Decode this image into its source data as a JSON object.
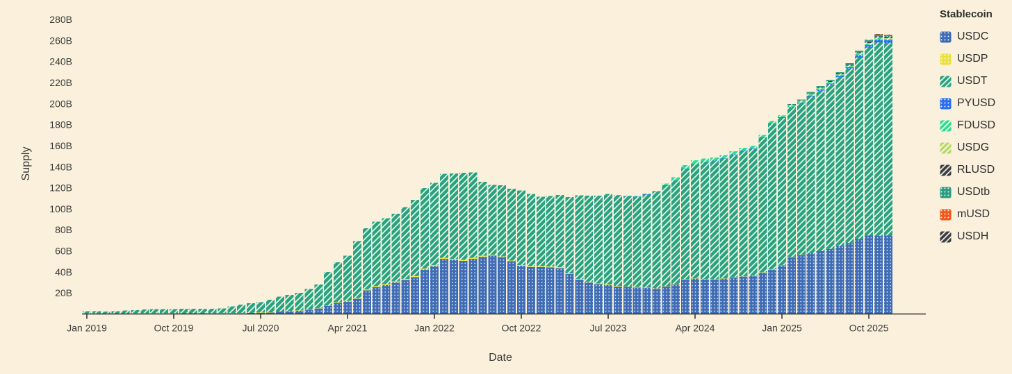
{
  "page": {
    "background": "#faf0dc",
    "text_color": "#3b3b3b",
    "axis_color": "#2f2f2f"
  },
  "chart_data": {
    "type": "bar",
    "stacked": true,
    "xlabel": "Date",
    "ylabel": "Supply",
    "legend_title": "Stablecoin",
    "legend_position": "right",
    "grid": false,
    "unit": "B (billions)",
    "ylim": [
      0,
      290
    ],
    "y_ticks": [
      {
        "value": 20,
        "label": "20B"
      },
      {
        "value": 40,
        "label": "40B"
      },
      {
        "value": 60,
        "label": "60B"
      },
      {
        "value": 80,
        "label": "80B"
      },
      {
        "value": 100,
        "label": "100B"
      },
      {
        "value": 120,
        "label": "120B"
      },
      {
        "value": 140,
        "label": "140B"
      },
      {
        "value": 160,
        "label": "160B"
      },
      {
        "value": 180,
        "label": "180B"
      },
      {
        "value": 200,
        "label": "200B"
      },
      {
        "value": 220,
        "label": "220B"
      },
      {
        "value": 240,
        "label": "240B"
      },
      {
        "value": 260,
        "label": "260B"
      },
      {
        "value": 280,
        "label": "280B"
      }
    ],
    "x_ticks": [
      {
        "index": 0,
        "label": "Jan 2019"
      },
      {
        "index": 9,
        "label": "Oct 2019"
      },
      {
        "index": 18,
        "label": "Jul 2020"
      },
      {
        "index": 27,
        "label": "Apr 2021"
      },
      {
        "index": 36,
        "label": "Jan 2022"
      },
      {
        "index": 45,
        "label": "Oct 2022"
      },
      {
        "index": 54,
        "label": "Jul 2023"
      },
      {
        "index": 63,
        "label": "Apr 2024"
      },
      {
        "index": 72,
        "label": "Jan 2025"
      },
      {
        "index": 81,
        "label": "Oct 2025"
      }
    ],
    "x_start": "2019-01",
    "x_end": "2025-12",
    "x_interval": "month",
    "series": [
      {
        "key": "usdc",
        "name": "USDC",
        "color": "#3e6cb5",
        "pattern": "dots",
        "values": [
          0.4,
          0.35,
          0.3,
          0.3,
          0.35,
          0.35,
          0.4,
          0.45,
          0.45,
          0.45,
          0.5,
          0.5,
          0.5,
          0.45,
          0.65,
          0.7,
          0.75,
          0.9,
          1.1,
          1.4,
          2.2,
          2.7,
          2.9,
          3.9,
          5.2,
          7.5,
          10.5,
          11.8,
          14.5,
          22.5,
          25.5,
          27.5,
          30.0,
          32.3,
          35.0,
          42.2,
          45.6,
          52.5,
          51.5,
          50.5,
          52.5,
          54.5,
          55.5,
          54.0,
          50.0,
          45.7,
          44.6,
          44.6,
          44.2,
          43.6,
          38.0,
          32.5,
          30.0,
          28.5,
          27.5,
          26.1,
          25.6,
          25.1,
          24.6,
          24.4,
          26.0,
          28.0,
          32.5,
          33.5,
          33.1,
          32.6,
          33.6,
          34.6,
          35.6,
          36.2,
          39.2,
          42.3,
          46.2,
          54.2,
          56.2,
          57.6,
          59.6,
          61.6,
          64.2,
          67.6,
          71.2,
          74.6,
          74.2,
          74.6
        ]
      },
      {
        "key": "usdp",
        "name": "USDP",
        "color": "#e9e23e",
        "pattern": "dots",
        "values": [
          0.15,
          0.15,
          0.15,
          0.15,
          0.15,
          0.15,
          0.2,
          0.2,
          0.2,
          0.2,
          0.25,
          0.25,
          0.25,
          0.25,
          0.25,
          0.25,
          0.25,
          0.25,
          0.25,
          0.25,
          0.25,
          0.25,
          0.3,
          0.3,
          0.4,
          0.5,
          0.6,
          0.7,
          0.8,
          0.85,
          0.9,
          0.95,
          0.95,
          0.95,
          0.95,
          0.95,
          0.95,
          0.95,
          0.95,
          0.95,
          0.95,
          0.9,
          0.9,
          0.9,
          0.9,
          0.9,
          0.85,
          0.85,
          0.85,
          0.8,
          0.75,
          0.7,
          0.65,
          0.6,
          0.55,
          0.5,
          0.5,
          0.48,
          0.45,
          0.45,
          0.45,
          0.42,
          0.4,
          0.4,
          0.38,
          0.36,
          0.35,
          0.33,
          0.3,
          0.28,
          0.25,
          0.22,
          0.2,
          0.18,
          0.15,
          0.13,
          0.12,
          0.11,
          0.1,
          0.1,
          0.1,
          0.1,
          0.1,
          0.1
        ]
      },
      {
        "key": "usdt",
        "name": "USDT",
        "color": "#2aa27c",
        "pattern": "hatch",
        "values": [
          2.0,
          2.0,
          2.0,
          2.2,
          2.9,
          3.1,
          3.6,
          4.0,
          4.05,
          4.1,
          4.2,
          4.1,
          4.2,
          4.3,
          4.3,
          6.4,
          8.0,
          9.2,
          10.0,
          12.0,
          13.9,
          15.3,
          16.8,
          19.6,
          22.4,
          32.0,
          38.0,
          43.0,
          54.0,
          58.0,
          61.5,
          62.5,
          64.5,
          68.5,
          72.5,
          76.5,
          78.3,
          79.8,
          81.2,
          82.8,
          81.2,
          70.2,
          66.2,
          67.6,
          68.3,
          71.0,
          68.8,
          66.2,
          67.0,
          68.8,
          72.5,
          79.5,
          82.0,
          83.3,
          86.0,
          86.3,
          85.8,
          86.0,
          88.5,
          91.0,
          95.5,
          98.5,
          105.0,
          108.5,
          110.8,
          112.5,
          113.8,
          116.2,
          118.8,
          120.3,
          128.0,
          138.5,
          140.0,
          142.0,
          144.0,
          149.0,
          152.5,
          156.5,
          161.0,
          165.5,
          172.5,
          178.5,
          184.0,
          183.0
        ]
      },
      {
        "key": "pyusd",
        "name": "PYUSD",
        "color": "#2b6ff0",
        "pattern": "dots",
        "values": [
          0,
          0,
          0,
          0,
          0,
          0,
          0,
          0,
          0,
          0,
          0,
          0,
          0,
          0,
          0,
          0,
          0,
          0,
          0,
          0,
          0,
          0,
          0,
          0,
          0,
          0,
          0,
          0,
          0,
          0,
          0,
          0,
          0,
          0,
          0,
          0,
          0,
          0,
          0,
          0,
          0,
          0,
          0,
          0,
          0,
          0,
          0,
          0,
          0,
          0,
          0,
          0,
          0,
          0,
          0,
          0.05,
          0.1,
          0.15,
          0.2,
          0.2,
          0.3,
          0.3,
          0.3,
          0.2,
          0.3,
          0.4,
          0.5,
          0.7,
          0.7,
          0.6,
          0.55,
          0.5,
          0.5,
          0.6,
          0.7,
          0.8,
          0.9,
          0.95,
          1.0,
          1.2,
          2.4,
          2.6,
          2.7,
          2.6
        ]
      },
      {
        "key": "fdusd",
        "name": "FDUSD",
        "color": "#30dc8c",
        "pattern": "hatch",
        "values": [
          0,
          0,
          0,
          0,
          0,
          0,
          0,
          0,
          0,
          0,
          0,
          0,
          0,
          0,
          0,
          0,
          0,
          0,
          0,
          0,
          0,
          0,
          0,
          0,
          0,
          0,
          0,
          0,
          0,
          0,
          0,
          0,
          0,
          0,
          0,
          0,
          0,
          0,
          0,
          0,
          0,
          0,
          0,
          0,
          0,
          0,
          0,
          0,
          0,
          0,
          0,
          0,
          0,
          0,
          0,
          0.3,
          0.45,
          0.55,
          0.75,
          1.1,
          1.9,
          2.6,
          3.3,
          3.5,
          3.3,
          3.0,
          2.9,
          2.9,
          2.7,
          2.5,
          2.3,
          2.0,
          1.9,
          1.8,
          1.6,
          1.45,
          1.35,
          1.3,
          1.4,
          1.3,
          1.2,
          1.1,
          1.1,
          1.05
        ]
      },
      {
        "key": "usdg",
        "name": "USDG",
        "color": "#b9d865",
        "pattern": "hatch",
        "values": [
          0,
          0,
          0,
          0,
          0,
          0,
          0,
          0,
          0,
          0,
          0,
          0,
          0,
          0,
          0,
          0,
          0,
          0,
          0,
          0,
          0,
          0,
          0,
          0,
          0,
          0,
          0,
          0,
          0,
          0,
          0,
          0,
          0,
          0,
          0,
          0,
          0,
          0,
          0,
          0,
          0,
          0,
          0,
          0,
          0,
          0,
          0,
          0,
          0,
          0,
          0,
          0,
          0,
          0,
          0,
          0,
          0,
          0,
          0,
          0,
          0,
          0,
          0,
          0,
          0,
          0,
          0,
          0,
          0,
          0,
          0.05,
          0.1,
          0.15,
          0.2,
          0.25,
          0.3,
          0.3,
          0.35,
          0.4,
          0.5,
          0.65,
          0.8,
          0.9,
          0.9
        ]
      },
      {
        "key": "rlusd",
        "name": "RLUSD",
        "color": "#3d3d3d",
        "pattern": "hatch",
        "values": [
          0,
          0,
          0,
          0,
          0,
          0,
          0,
          0,
          0,
          0,
          0,
          0,
          0,
          0,
          0,
          0,
          0,
          0,
          0,
          0,
          0,
          0,
          0,
          0,
          0,
          0,
          0,
          0,
          0,
          0,
          0,
          0,
          0,
          0,
          0,
          0,
          0,
          0,
          0,
          0,
          0,
          0,
          0,
          0,
          0,
          0,
          0,
          0,
          0,
          0,
          0,
          0,
          0,
          0,
          0,
          0,
          0,
          0,
          0,
          0,
          0,
          0,
          0,
          0,
          0,
          0,
          0,
          0,
          0,
          0,
          0,
          0.05,
          0.1,
          0.15,
          0.25,
          0.3,
          0.35,
          0.45,
          0.5,
          0.65,
          0.7,
          0.8,
          0.9,
          0.9
        ]
      },
      {
        "key": "usdtb",
        "name": "USDtb",
        "color": "#2d9c83",
        "pattern": "dots",
        "values": [
          0,
          0,
          0,
          0,
          0,
          0,
          0,
          0,
          0,
          0,
          0,
          0,
          0,
          0,
          0,
          0,
          0,
          0,
          0,
          0,
          0,
          0,
          0,
          0,
          0,
          0,
          0,
          0,
          0,
          0,
          0,
          0,
          0,
          0,
          0,
          0,
          0,
          0,
          0,
          0,
          0,
          0,
          0,
          0,
          0,
          0,
          0,
          0,
          0,
          0,
          0,
          0,
          0,
          0,
          0,
          0,
          0,
          0,
          0,
          0,
          0,
          0,
          0,
          0,
          0,
          0,
          0,
          0,
          0,
          0,
          0,
          0.05,
          0.1,
          0.6,
          0.85,
          1.4,
          1.45,
          1.45,
          1.45,
          1.5,
          1.6,
          1.7,
          1.7,
          1.7
        ]
      },
      {
        "key": "musd",
        "name": "mUSD",
        "color": "#f2581d",
        "pattern": "dots",
        "values": [
          0,
          0,
          0,
          0,
          0,
          0,
          0,
          0,
          0,
          0,
          0,
          0,
          0,
          0,
          0,
          0,
          0,
          0,
          0,
          0,
          0,
          0,
          0,
          0,
          0,
          0,
          0,
          0,
          0,
          0,
          0,
          0,
          0,
          0,
          0,
          0,
          0,
          0,
          0,
          0,
          0,
          0,
          0,
          0,
          0,
          0,
          0,
          0,
          0,
          0,
          0,
          0,
          0,
          0,
          0,
          0,
          0,
          0,
          0,
          0,
          0,
          0,
          0,
          0,
          0,
          0,
          0,
          0,
          0,
          0,
          0,
          0,
          0,
          0,
          0,
          0,
          0,
          0,
          0,
          0,
          0.1,
          0.2,
          0.3,
          0.3
        ]
      },
      {
        "key": "usdh",
        "name": "USDH",
        "color": "#3d3d3d",
        "pattern": "hatch",
        "values": [
          0,
          0,
          0,
          0,
          0,
          0,
          0,
          0,
          0,
          0,
          0,
          0,
          0,
          0,
          0,
          0,
          0,
          0,
          0,
          0,
          0,
          0,
          0,
          0,
          0,
          0,
          0,
          0,
          0,
          0,
          0,
          0,
          0,
          0,
          0,
          0,
          0,
          0,
          0,
          0,
          0,
          0,
          0,
          0,
          0,
          0,
          0,
          0,
          0,
          0,
          0,
          0,
          0,
          0,
          0,
          0,
          0,
          0,
          0,
          0,
          0,
          0,
          0,
          0,
          0,
          0,
          0,
          0,
          0,
          0,
          0,
          0,
          0,
          0,
          0,
          0,
          0,
          0,
          0,
          0,
          0.05,
          0.15,
          0.25,
          0.25
        ]
      }
    ]
  }
}
